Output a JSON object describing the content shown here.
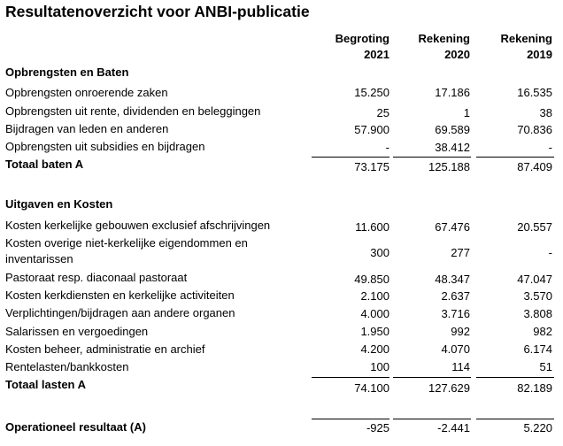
{
  "title": "Resultatenoverzicht voor ANBI-publicatie",
  "columns": [
    {
      "label": "Begroting",
      "year": "2021"
    },
    {
      "label": "Rekening",
      "year": "2020"
    },
    {
      "label": "Rekening",
      "year": "2019"
    }
  ],
  "baten": {
    "heading": "Opbrengsten en Baten",
    "rows": [
      {
        "label": "Opbrengsten onroerende zaken",
        "v": [
          "15.250",
          "17.186",
          "16.535"
        ]
      },
      {
        "label": "Opbrengsten uit rente, dividenden en beleggingen",
        "v": [
          "25",
          "1",
          "38"
        ]
      },
      {
        "label": "Bijdragen van leden en anderen",
        "v": [
          "57.900",
          "69.589",
          "70.836"
        ]
      },
      {
        "label": "Opbrengsten uit subsidies en bijdragen",
        "v": [
          "-",
          "38.412",
          "-"
        ]
      }
    ],
    "total": {
      "label": "Totaal baten A",
      "v": [
        "73.175",
        "125.188",
        "87.409"
      ]
    }
  },
  "lasten": {
    "heading": "Uitgaven en Kosten",
    "rows": [
      {
        "label": "Kosten kerkelijke gebouwen exclusief afschrijvingen",
        "v": [
          "11.600",
          "67.476",
          "20.557"
        ]
      },
      {
        "label": "Kosten overige niet-kerkelijke eigendommen en inventarissen",
        "v": [
          "300",
          "277",
          "-"
        ]
      },
      {
        "label": "Pastoraat resp. diaconaal pastoraat",
        "v": [
          "49.850",
          "48.347",
          "47.047"
        ]
      },
      {
        "label": "Kosten kerkdiensten en kerkelijke activiteiten",
        "v": [
          "2.100",
          "2.637",
          "3.570"
        ]
      },
      {
        "label": "Verplichtingen/bijdragen aan andere organen",
        "v": [
          "4.000",
          "3.716",
          "3.808"
        ]
      },
      {
        "label": "Salarissen en vergoedingen",
        "v": [
          "1.950",
          "992",
          "982"
        ]
      },
      {
        "label": "Kosten beheer, administratie en archief",
        "v": [
          "4.200",
          "4.070",
          "6.174"
        ]
      },
      {
        "label": "Rentelasten/bankkosten",
        "v": [
          "100",
          "114",
          "51"
        ]
      }
    ],
    "total": {
      "label": "Totaal lasten A",
      "v": [
        "74.100",
        "127.629",
        "82.189"
      ]
    }
  },
  "resultaat": {
    "label": "Operationeel resultaat (A)",
    "v": [
      "-925",
      "-2.441",
      "5.220"
    ]
  }
}
